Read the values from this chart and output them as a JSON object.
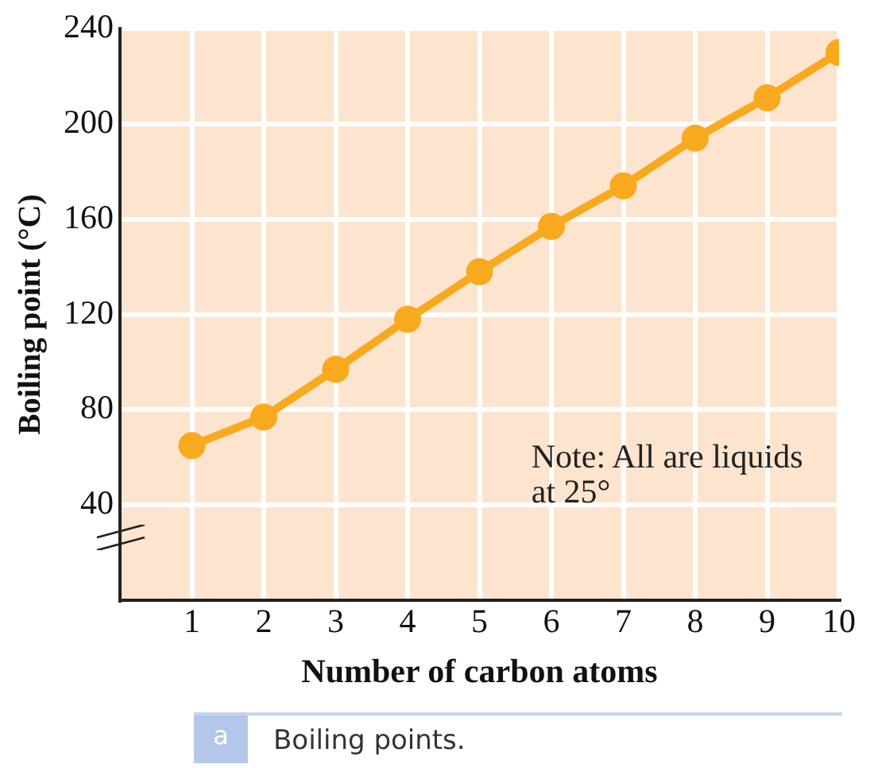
{
  "chart_data": {
    "type": "line",
    "xlabel": "Number of carbon atoms",
    "ylabel": "Boiling point (°C)",
    "x": [
      1,
      2,
      3,
      4,
      5,
      6,
      7,
      8,
      9,
      10
    ],
    "series": [
      {
        "color": "#f9a91e",
        "values": [
          65,
          77,
          97,
          118,
          138,
          157,
          174,
          194,
          211,
          230
        ]
      }
    ],
    "xlim": [
      0,
      10
    ],
    "xticks": [
      1,
      2,
      3,
      4,
      5,
      6,
      7,
      8,
      9,
      10
    ],
    "ylim": [
      0,
      240
    ],
    "yticks": [
      40,
      80,
      120,
      160,
      200,
      240
    ],
    "grid": true,
    "marker": "circle",
    "line_style": "solid",
    "annotations": [
      "Note: All are liquids at 25°",
      "a",
      "Boiling points."
    ]
  }
}
